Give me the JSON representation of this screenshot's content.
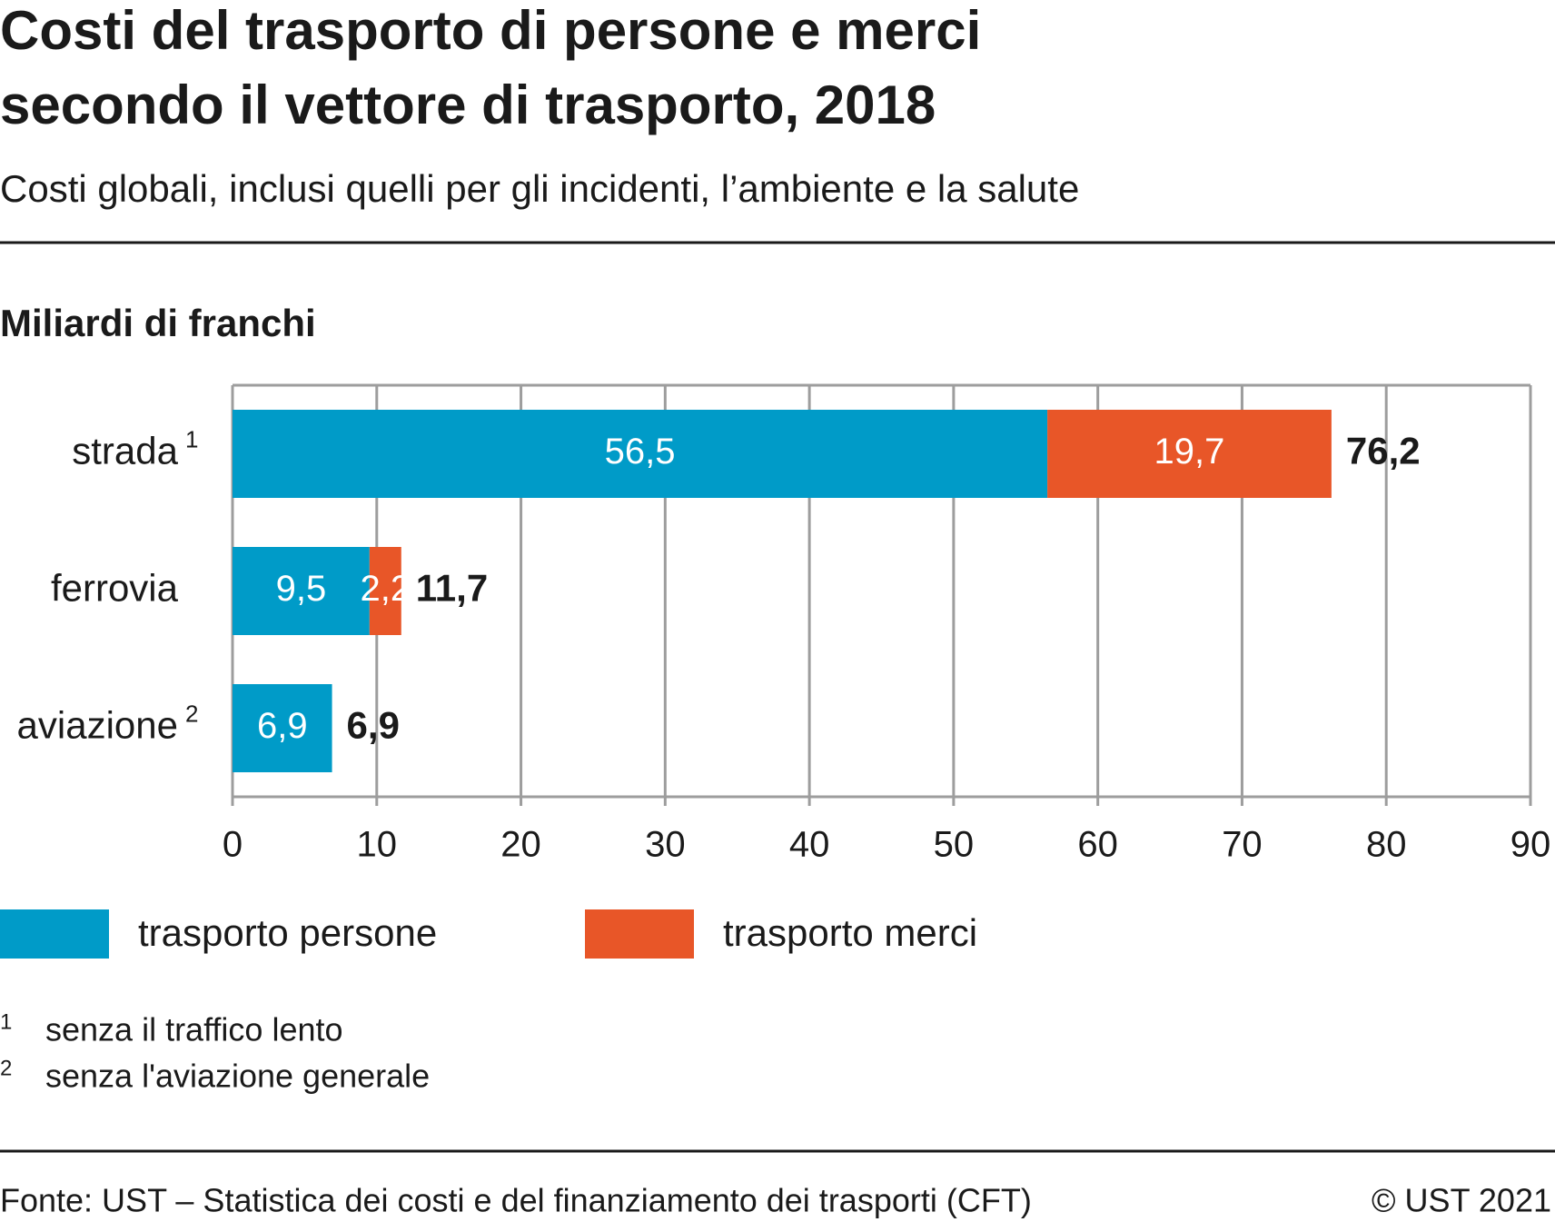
{
  "chart_data": {
    "type": "stacked-bar-horizontal",
    "title": [
      "Costi del trasporto di persone e merci",
      "secondo il vettore di trasporto, 2018"
    ],
    "subtitle": "Costi globali, inclusi quelli per gli incidenti, l’ambiente e la salute",
    "axis_label": "Miliardi di franchi",
    "categories": [
      "strada",
      "ferrovia",
      "aviazione"
    ],
    "category_notes": [
      "1",
      null,
      "2"
    ],
    "series": [
      {
        "name": "trasporto persone",
        "color": "#009bc8",
        "values": [
          56.5,
          9.5,
          6.9
        ],
        "value_labels": [
          "56,5",
          "9,5",
          "6,9"
        ]
      },
      {
        "name": "trasporto merci",
        "color": "#e85628",
        "values": [
          19.7,
          2.2,
          null
        ],
        "value_labels": [
          "19,7",
          "2,2",
          null
        ]
      }
    ],
    "totals": [
      76.2,
      11.7,
      6.9
    ],
    "total_labels": [
      "76,2",
      "11,7",
      "6,9"
    ],
    "xlim": [
      0,
      90
    ],
    "xticks": [
      0,
      10,
      20,
      30,
      40,
      50,
      60,
      70,
      80,
      90
    ],
    "grid": true,
    "footnotes": [
      {
        "marker": "1",
        "text": "senza il traffico lento"
      },
      {
        "marker": "2",
        "text": "senza l'aviazione generale"
      }
    ],
    "source": "Fonte: UST – Statistica dei costi e del finanziamento dei trasporti (CFT)",
    "copyright": "© UST 2021"
  }
}
